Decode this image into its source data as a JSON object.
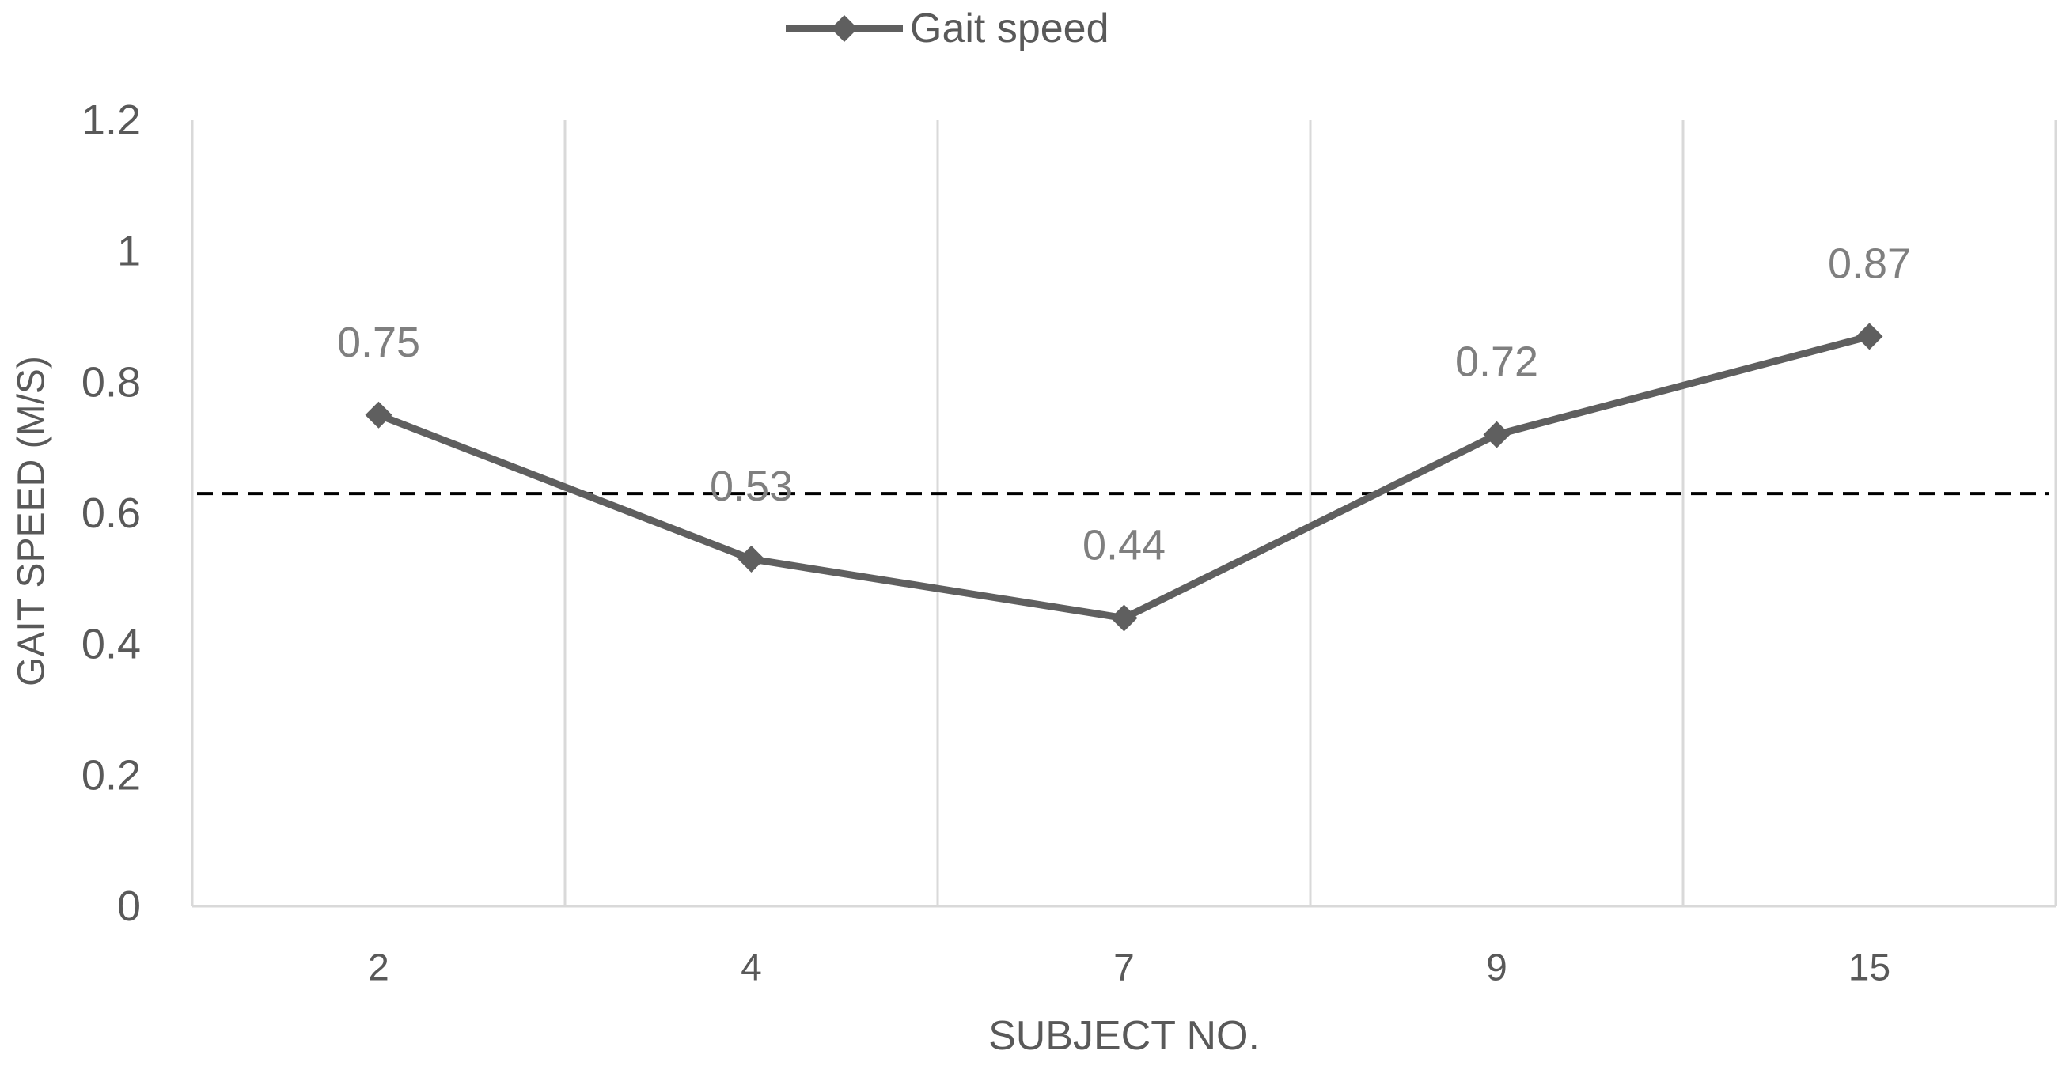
{
  "chart_data": {
    "type": "line",
    "title": "",
    "xlabel": "SUBJECT NO.",
    "ylabel": "GAIT SPEED (M/S)",
    "categories": [
      "2",
      "4",
      "7",
      "9",
      "15"
    ],
    "series": [
      {
        "name": "Gait speed",
        "values": [
          0.75,
          0.53,
          0.44,
          0.72,
          0.87
        ],
        "data_labels": [
          "0.75",
          "0.53",
          "0.44",
          "0.72",
          "0.87"
        ],
        "marker": "diamond",
        "color": "#5f5f5f"
      }
    ],
    "reference_line": {
      "value": 0.63,
      "style": "dashed",
      "color": "#000000"
    },
    "ylim": [
      0,
      1.2
    ],
    "y_ticks": [
      "0",
      "0.2",
      "0.4",
      "0.6",
      "0.8",
      "1",
      "1.2"
    ],
    "y_tick_values": [
      0,
      0.2,
      0.4,
      0.6,
      0.8,
      1.0,
      1.2
    ],
    "grid": "vertical",
    "legend_position": "top-left",
    "colors": {
      "series": "#5f5f5f",
      "grid": "#d9d9d9",
      "axis": "#d9d9d9",
      "tick_text": "#595959",
      "data_label_text": "#7f7f7f",
      "reference": "#000000"
    }
  }
}
